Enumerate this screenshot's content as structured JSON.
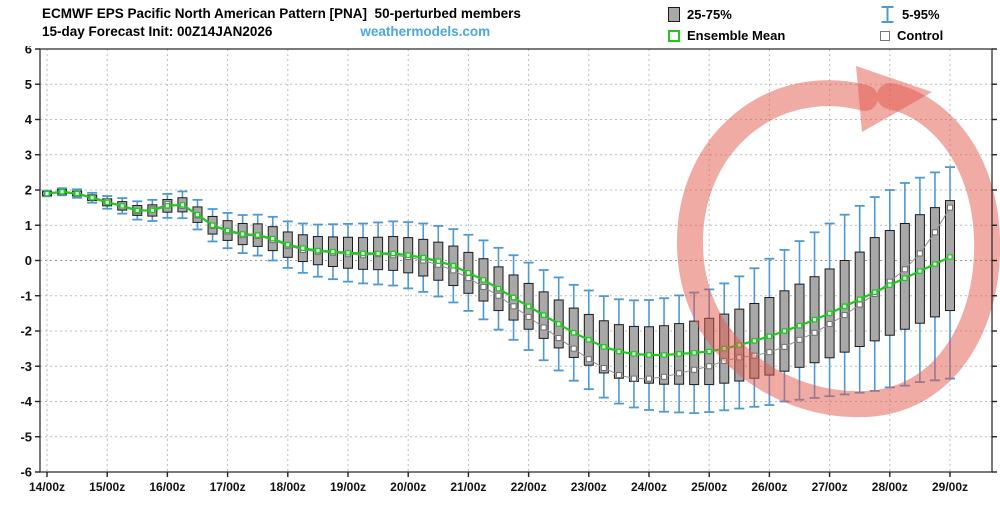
{
  "header": {
    "title_line1": "ECMWF EPS Pacific North American Pattern [PNA]  50-perturbed members",
    "title_line2": "15-day Forecast Init: 00Z14JAN2026",
    "watermark": "weathermodels.com"
  },
  "legend": {
    "box": "25-75%",
    "whisker": "5-95%",
    "mean": "Ensemble Mean",
    "control": "Control"
  },
  "colors": {
    "box_fill": "#a8a8a8",
    "box_border": "#1a1a1a",
    "whisker": "#4f99d3",
    "mean": "#22c522",
    "mean_marker_fill": "#eaffea",
    "control_line": "#8f8f8f",
    "control_border": "#6f6f6f",
    "control_fill": "#ffffff",
    "grid": "#bcbcbc",
    "zero_line": "#9a9a9a",
    "axis": "#333333",
    "tick_label": "#111111",
    "watermark": "#49a8e0",
    "annotation": "rgba(228,88,76,0.5)"
  },
  "chart_data": {
    "type": "box-whisker-timeseries",
    "title": "ECMWF EPS Pacific North American Pattern [PNA] 50-perturbed members",
    "subtitle": "15-day Forecast Init: 00Z14JAN2026",
    "legend_position": "top-right",
    "grid": true,
    "ylim": [
      -6,
      6
    ],
    "y_ticks": [
      -6,
      -5,
      -4,
      -3,
      -2,
      -1,
      0,
      1,
      2,
      3,
      4,
      5,
      6
    ],
    "x_tick_labels": [
      "14/00z",
      "15/00z",
      "16/00z",
      "17/00z",
      "18/00z",
      "19/00z",
      "20/00z",
      "21/00z",
      "22/00z",
      "23/00z",
      "24/00z",
      "25/00z",
      "26/00z",
      "27/00z",
      "28/00z",
      "29/00z"
    ],
    "step_hours": 6,
    "series": {
      "mean": [
        1.9,
        1.95,
        1.9,
        1.78,
        1.65,
        1.55,
        1.42,
        1.42,
        1.55,
        1.58,
        1.3,
        1.0,
        0.85,
        0.75,
        0.72,
        0.62,
        0.45,
        0.35,
        0.28,
        0.25,
        0.22,
        0.2,
        0.2,
        0.2,
        0.15,
        0.08,
        -0.02,
        -0.15,
        -0.35,
        -0.55,
        -0.8,
        -1.05,
        -1.3,
        -1.55,
        -1.8,
        -2.05,
        -2.25,
        -2.45,
        -2.58,
        -2.65,
        -2.68,
        -2.68,
        -2.65,
        -2.62,
        -2.58,
        -2.5,
        -2.4,
        -2.28,
        -2.15,
        -2.0,
        -1.85,
        -1.68,
        -1.5,
        -1.3,
        -1.1,
        -0.9,
        -0.7,
        -0.5,
        -0.3,
        -0.1,
        0.1
      ],
      "control": [
        1.9,
        1.93,
        1.88,
        1.8,
        1.68,
        1.52,
        1.4,
        1.45,
        1.6,
        1.55,
        1.28,
        0.98,
        0.82,
        0.72,
        0.7,
        0.58,
        0.42,
        0.3,
        0.25,
        0.22,
        0.18,
        0.15,
        0.18,
        0.15,
        0.1,
        0.0,
        -0.12,
        -0.28,
        -0.5,
        -0.75,
        -1.0,
        -1.3,
        -1.6,
        -1.9,
        -2.2,
        -2.5,
        -2.8,
        -3.05,
        -3.25,
        -3.35,
        -3.35,
        -3.3,
        -3.2,
        -3.1,
        -3.0,
        -2.85,
        -2.75,
        -2.7,
        -2.6,
        -2.45,
        -2.25,
        -2.05,
        -1.8,
        -1.55,
        -1.25,
        -0.95,
        -0.6,
        -0.25,
        0.2,
        0.8,
        1.5
      ],
      "p25": [
        1.85,
        1.89,
        1.83,
        1.7,
        1.55,
        1.43,
        1.28,
        1.26,
        1.37,
        1.38,
        1.08,
        0.75,
        0.57,
        0.45,
        0.4,
        0.28,
        0.09,
        -0.03,
        -0.12,
        -0.17,
        -0.22,
        -0.25,
        -0.26,
        -0.28,
        -0.35,
        -0.44,
        -0.56,
        -0.71,
        -0.93,
        -1.15,
        -1.42,
        -1.69,
        -1.95,
        -2.21,
        -2.48,
        -2.75,
        -2.97,
        -3.19,
        -3.34,
        -3.43,
        -3.48,
        -3.51,
        -3.51,
        -3.52,
        -3.52,
        -3.48,
        -3.42,
        -3.34,
        -3.25,
        -3.14,
        -3.03,
        -2.9,
        -2.76,
        -2.6,
        -2.44,
        -2.28,
        -2.12,
        -1.95,
        -1.78,
        -1.6,
        -1.42
      ],
      "p75": [
        1.95,
        2.01,
        1.97,
        1.86,
        1.75,
        1.67,
        1.56,
        1.58,
        1.73,
        1.78,
        1.52,
        1.25,
        1.13,
        1.05,
        1.04,
        0.96,
        0.81,
        0.73,
        0.68,
        0.67,
        0.66,
        0.65,
        0.66,
        0.68,
        0.65,
        0.6,
        0.52,
        0.41,
        0.23,
        0.05,
        -0.18,
        -0.41,
        -0.65,
        -0.89,
        -1.12,
        -1.35,
        -1.53,
        -1.71,
        -1.82,
        -1.87,
        -1.88,
        -1.85,
        -1.79,
        -1.72,
        -1.64,
        -1.52,
        -1.38,
        -1.22,
        -1.05,
        -0.86,
        -0.67,
        -0.46,
        -0.24,
        0.0,
        0.24,
        0.65,
        0.85,
        1.05,
        1.3,
        1.5,
        1.7
      ],
      "p5": [
        1.82,
        1.85,
        1.78,
        1.64,
        1.47,
        1.33,
        1.16,
        1.12,
        1.21,
        1.2,
        0.88,
        0.54,
        0.35,
        0.21,
        0.14,
        0.0,
        -0.21,
        -0.35,
        -0.46,
        -0.53,
        -0.6,
        -0.65,
        -0.68,
        -0.71,
        -0.79,
        -0.89,
        -1.02,
        -1.19,
        -1.43,
        -1.67,
        -1.96,
        -2.25,
        -2.54,
        -2.83,
        -3.12,
        -3.41,
        -3.65,
        -3.89,
        -4.06,
        -4.17,
        -4.24,
        -4.29,
        -4.31,
        -4.33,
        -4.3,
        -4.25,
        -4.2,
        -4.15,
        -4.1,
        -4.0,
        -3.95,
        -3.9,
        -3.85,
        -3.8,
        -3.75,
        -3.7,
        -3.6,
        -3.55,
        -3.45,
        -3.4,
        -3.35
      ],
      "p95": [
        1.98,
        2.05,
        2.02,
        1.92,
        1.83,
        1.77,
        1.68,
        1.72,
        1.89,
        1.96,
        1.72,
        1.46,
        1.35,
        1.29,
        1.3,
        1.24,
        1.11,
        1.05,
        1.02,
        1.03,
        1.04,
        1.05,
        1.08,
        1.11,
        1.09,
        1.05,
        0.98,
        0.89,
        0.73,
        0.57,
        0.36,
        0.15,
        -0.06,
        -0.27,
        -0.48,
        -0.69,
        -0.85,
        -1.01,
        -1.1,
        -1.13,
        -1.12,
        -1.07,
        -0.99,
        -0.91,
        -0.82,
        -0.65,
        -0.45,
        -0.22,
        0.05,
        0.3,
        0.55,
        0.8,
        1.05,
        1.3,
        1.55,
        1.8,
        2.0,
        2.2,
        2.35,
        2.5,
        2.65
      ]
    }
  },
  "annotation": {
    "description": "hand-drawn red circle with arrowhead highlighting the 25/00z-29/00z recovery period",
    "color": "rgba(228,88,76,0.5)"
  }
}
